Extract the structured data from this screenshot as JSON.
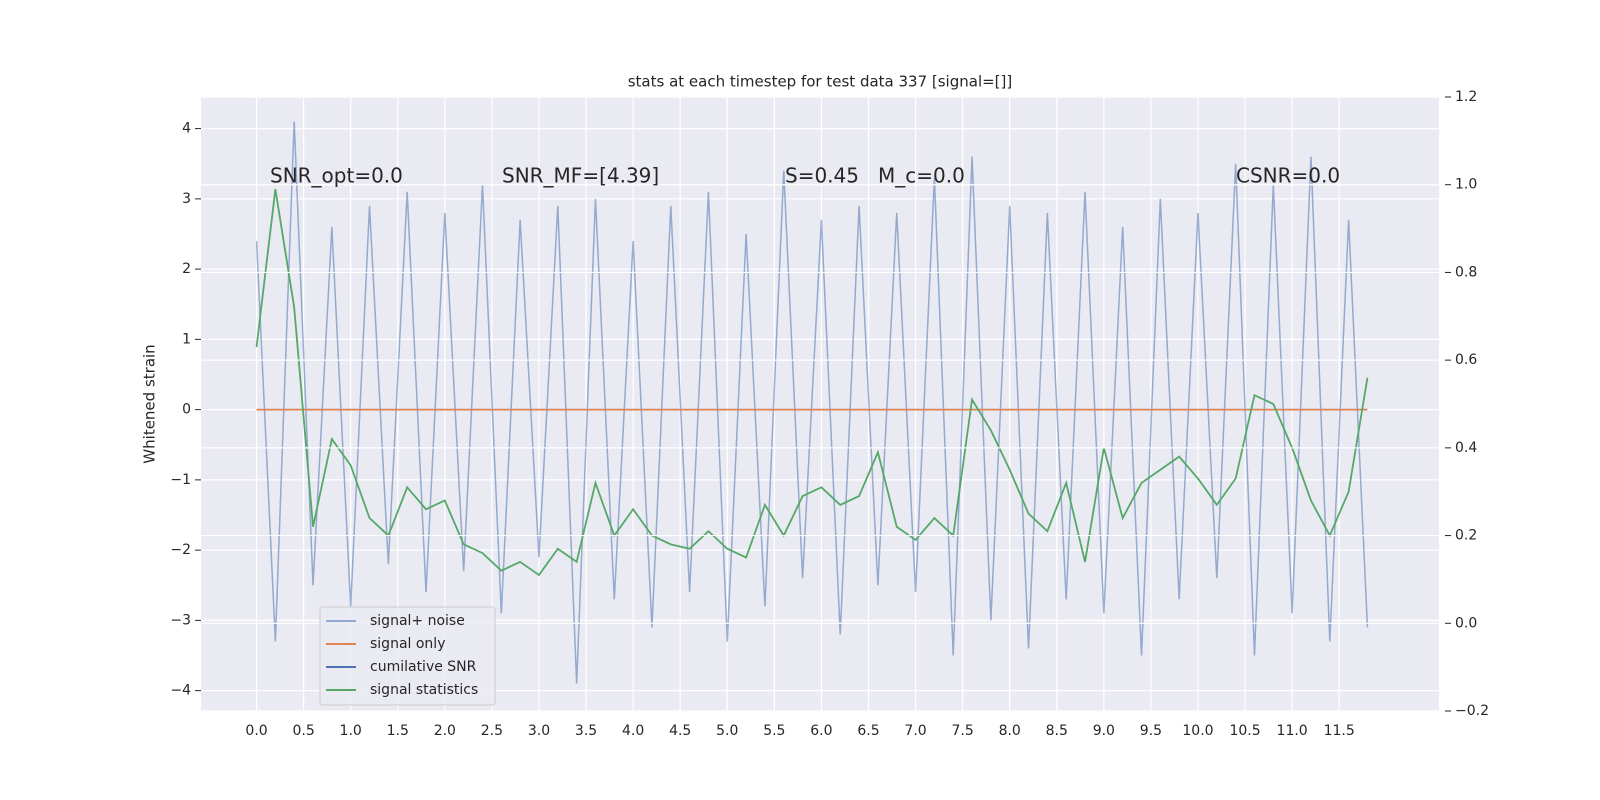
{
  "chart_data": {
    "type": "line",
    "title": "stats at each timestep for test data 337 [signal=[]]",
    "ylabel": "Whitened strain",
    "annotations": [
      "SNR_opt=0.0",
      "SNR_MF=[4.39]",
      "S=0.45",
      "M_c=0.0",
      "CSNR=0.0"
    ],
    "x": [
      0.0,
      0.2,
      0.4,
      0.6,
      0.8,
      1.0,
      1.2,
      1.4,
      1.6,
      1.8,
      2.0,
      2.2,
      2.4,
      2.6,
      2.8,
      3.0,
      3.2,
      3.4,
      3.6,
      3.8,
      4.0,
      4.2,
      4.4,
      4.6,
      4.8,
      5.0,
      5.2,
      5.4,
      5.6,
      5.8,
      6.0,
      6.2,
      6.4,
      6.6,
      6.8,
      7.0,
      7.2,
      7.4,
      7.6,
      7.8,
      8.0,
      8.2,
      8.4,
      8.6,
      8.8,
      9.0,
      9.2,
      9.4,
      9.6,
      9.8,
      10.0,
      10.2,
      10.4,
      10.6,
      10.8,
      11.0,
      11.2,
      11.4,
      11.6,
      11.8
    ],
    "series": [
      {
        "name": "signal+ noise",
        "color": "#4c72b0",
        "values": [
          2.4,
          -3.3,
          4.1,
          -2.5,
          2.6,
          -2.8,
          2.9,
          -2.2,
          3.1,
          -2.6,
          2.8,
          -2.3,
          3.2,
          -2.9,
          2.7,
          -2.1,
          2.9,
          -3.9,
          3.0,
          -2.7,
          2.4,
          -3.1,
          2.9,
          -2.6,
          3.1,
          -3.3,
          2.5,
          -2.8,
          3.4,
          -2.4,
          2.7,
          -3.2,
          2.9,
          -2.5,
          2.8,
          -2.6,
          3.3,
          -3.5,
          3.6,
          -3.0,
          2.9,
          -3.4,
          2.8,
          -2.7,
          3.1,
          -2.9,
          2.6,
          -3.5,
          3.0,
          -2.7,
          2.8,
          -2.4,
          3.5,
          -3.5,
          3.2,
          -2.9,
          3.6,
          -3.3,
          2.7,
          -3.1
        ]
      },
      {
        "name": "signal only",
        "color": "#dd8452",
        "values": [
          0,
          0,
          0,
          0,
          0,
          0,
          0,
          0,
          0,
          0,
          0,
          0,
          0,
          0,
          0,
          0,
          0,
          0,
          0,
          0,
          0,
          0,
          0,
          0,
          0,
          0,
          0,
          0,
          0,
          0,
          0,
          0,
          0,
          0,
          0,
          0,
          0,
          0,
          0,
          0,
          0,
          0,
          0,
          0,
          0,
          0,
          0,
          0,
          0,
          0,
          0,
          0,
          0,
          0,
          0,
          0,
          0,
          0,
          0,
          0
        ]
      },
      {
        "name": "cumilative SNR",
        "color": "#4c72b0",
        "values": [
          null,
          null,
          null,
          null,
          null,
          null,
          null,
          null,
          null,
          null,
          null,
          null,
          null,
          null,
          null,
          null,
          null,
          null,
          null,
          null,
          null,
          null,
          null,
          null,
          null,
          null,
          null,
          null,
          null,
          null,
          null,
          null,
          null,
          null,
          null,
          null,
          null,
          null,
          null,
          null,
          null,
          null,
          null,
          null,
          null,
          null,
          null,
          null,
          null,
          null,
          null,
          null,
          null,
          null,
          null,
          null,
          null,
          null,
          null,
          null
        ]
      },
      {
        "name": "signal statistics",
        "color": "#55a868",
        "axis": "y2",
        "values": [
          0.63,
          0.99,
          0.72,
          0.22,
          0.42,
          0.36,
          0.24,
          0.2,
          0.31,
          0.26,
          0.28,
          0.18,
          0.16,
          0.12,
          0.14,
          0.11,
          0.17,
          0.14,
          0.32,
          0.2,
          0.26,
          0.2,
          0.18,
          0.17,
          0.21,
          0.17,
          0.15,
          0.27,
          0.2,
          0.29,
          0.31,
          0.27,
          0.29,
          0.39,
          0.22,
          0.19,
          0.24,
          0.2,
          0.51,
          0.44,
          0.35,
          0.25,
          0.21,
          0.32,
          0.14,
          0.4,
          0.24,
          0.32,
          0.35,
          0.38,
          0.33,
          0.27,
          0.33,
          0.52,
          0.5,
          0.4,
          0.28,
          0.2,
          0.3,
          0.56
        ]
      }
    ],
    "xlim": [
      -0.59,
      12.56
    ],
    "ylim": [
      -4.29,
      4.45
    ],
    "y2lim": [
      -0.2,
      1.2
    ],
    "xticks": [
      {
        "value": 0,
        "label": "0.0"
      },
      {
        "value": 0.5,
        "label": "0.5"
      },
      {
        "value": 1,
        "label": "1.0"
      },
      {
        "value": 1.5,
        "label": "1.5"
      },
      {
        "value": 2,
        "label": "2.0"
      },
      {
        "value": 2.5,
        "label": "2.5"
      },
      {
        "value": 3,
        "label": "3.0"
      },
      {
        "value": 3.5,
        "label": "3.5"
      },
      {
        "value": 4,
        "label": "4.0"
      },
      {
        "value": 4.5,
        "label": "4.5"
      },
      {
        "value": 5,
        "label": "5.0"
      },
      {
        "value": 5.5,
        "label": "5.5"
      },
      {
        "value": 6,
        "label": "6.0"
      },
      {
        "value": 6.5,
        "label": "6.5"
      },
      {
        "value": 7,
        "label": "7.0"
      },
      {
        "value": 7.5,
        "label": "7.5"
      },
      {
        "value": 8,
        "label": "8.0"
      },
      {
        "value": 8.5,
        "label": "8.5"
      },
      {
        "value": 9,
        "label": "9.0"
      },
      {
        "value": 9.5,
        "label": "9.5"
      },
      {
        "value": 10,
        "label": "10.0"
      },
      {
        "value": 10.5,
        "label": "10.5"
      },
      {
        "value": 11,
        "label": "11.0"
      },
      {
        "value": 11.5,
        "label": "11.5"
      }
    ],
    "yticks": [
      {
        "value": -4,
        "label": "−4"
      },
      {
        "value": -3,
        "label": "−3"
      },
      {
        "value": -2,
        "label": "−2"
      },
      {
        "value": -1,
        "label": "−1"
      },
      0,
      1,
      2,
      3,
      4
    ],
    "y2ticks": [
      {
        "value": -0.2,
        "label": "−0.2"
      },
      {
        "value": 0,
        "label": "0.0"
      },
      {
        "value": 0.2,
        "label": "0.2"
      },
      {
        "value": 0.4,
        "label": "0.4"
      },
      {
        "value": 0.6,
        "label": "0.6"
      },
      {
        "value": 0.8,
        "label": "0.8"
      },
      {
        "value": 1,
        "label": "1.0"
      },
      {
        "value": 1.2,
        "label": "1.2"
      }
    ],
    "grid": true,
    "legend": "lower left"
  }
}
